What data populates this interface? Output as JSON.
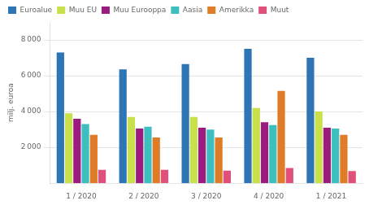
{
  "chart_data": {
    "type": "bar",
    "categories": [
      "1 / 2020",
      "2 / 2020",
      "3 / 2020",
      "4 / 2020",
      "1 / 2021"
    ],
    "series": [
      {
        "name": "Euroalue",
        "color": "#2E75B6",
        "values": [
          7300,
          6350,
          6650,
          7500,
          7000
        ]
      },
      {
        "name": "Muu EU",
        "color": "#C9E04A",
        "values": [
          3900,
          3700,
          3700,
          4200,
          4000
        ]
      },
      {
        "name": "Muu Eurooppa",
        "color": "#9B1B7E",
        "values": [
          3600,
          3050,
          3100,
          3400,
          3100
        ]
      },
      {
        "name": "Aasia",
        "color": "#3DBFBF",
        "values": [
          3300,
          3150,
          3000,
          3250,
          3050
        ]
      },
      {
        "name": "Amerikka",
        "color": "#E07B27",
        "values": [
          2700,
          2550,
          2550,
          5150,
          2700
        ]
      },
      {
        "name": "Muut",
        "color": "#E0507A",
        "values": [
          750,
          750,
          700,
          850,
          680
        ]
      }
    ],
    "ylabel": "milj. euroa",
    "ylim": [
      0,
      9000
    ],
    "yticks": [
      {
        "value": 2000,
        "label": "2 000"
      },
      {
        "value": 4000,
        "label": "4 000"
      },
      {
        "value": 6000,
        "label": "6 000"
      },
      {
        "value": 8000,
        "label": "8 000"
      }
    ],
    "grid": true,
    "legend": "top"
  }
}
